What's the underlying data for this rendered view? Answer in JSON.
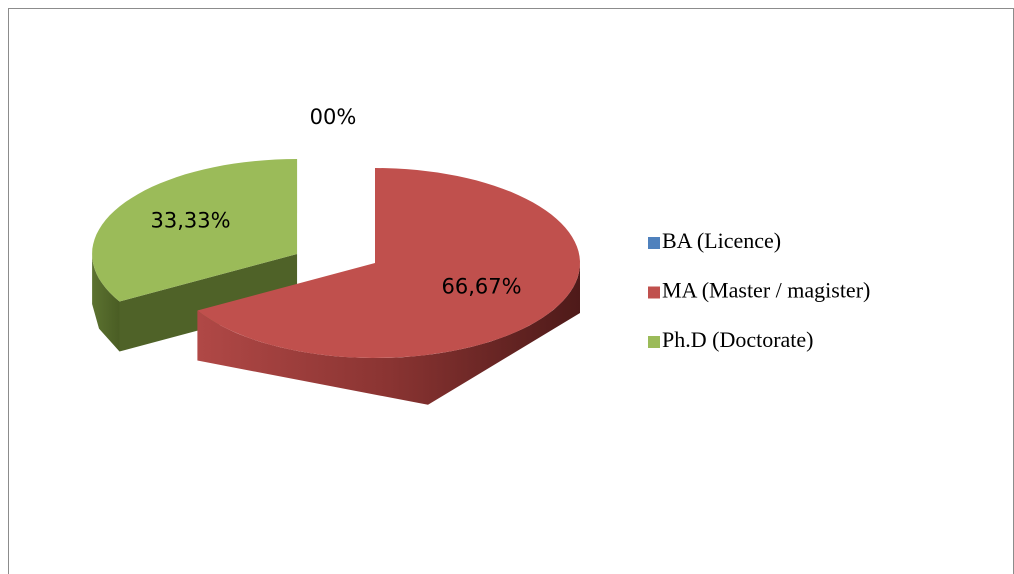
{
  "chart_data": {
    "type": "pie",
    "categories": [
      "BA (Licence)",
      "MA (Master / magister)",
      "Ph.D (Doctorate)"
    ],
    "values": [
      0,
      66.67,
      33.33
    ],
    "value_labels": [
      "00%",
      "66,67%",
      "33,33%"
    ],
    "colors": [
      "#4f81bd",
      "#c0504d",
      "#9bbb59"
    ],
    "legend": "right"
  }
}
